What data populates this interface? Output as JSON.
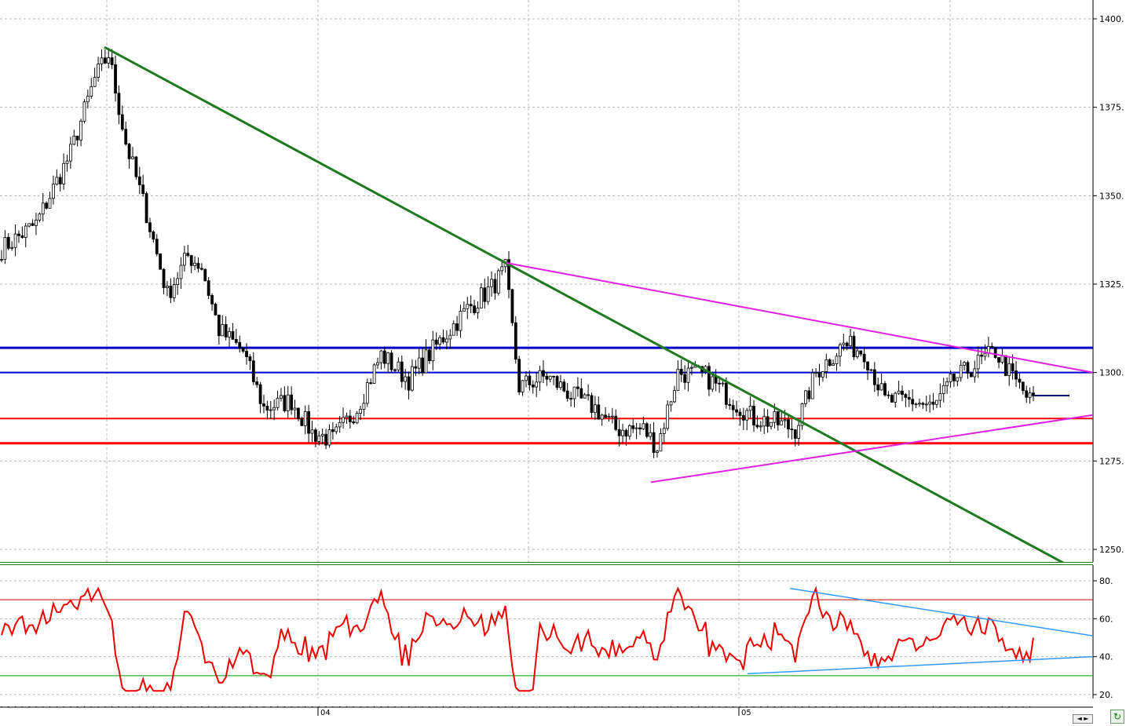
{
  "chart_data": [
    {
      "type": "candlestick",
      "title": "",
      "ylim": [
        1242,
        1410
      ],
      "y_ticks": [
        "1400.",
        "1375.",
        "1350.",
        "1325.",
        "1300.",
        "1275.",
        "1250."
      ],
      "y_tick_values": [
        1400,
        1375,
        1350,
        1325,
        1300,
        1275,
        1250
      ],
      "x_labels": [
        "04",
        "05"
      ],
      "grid": true,
      "last_price": 1293.5,
      "key_anchors": [
        {
          "label": "start",
          "close": 1335
        },
        {
          "label": "peak",
          "high": 1392
        },
        {
          "label": "2004 low",
          "low": 1277
        },
        {
          "label": "2004 high",
          "high": 1331
        },
        {
          "label": "2005 low",
          "low": 1269
        },
        {
          "label": "2005 high",
          "high": 1316
        }
      ],
      "horizontal_levels": [
        {
          "value": 1307,
          "color": "#0000cc"
        },
        {
          "value": 1300,
          "color": "#0000cc"
        },
        {
          "value": 1287,
          "color": "#ff0000"
        },
        {
          "value": 1280,
          "color": "#ff0000"
        }
      ],
      "trendlines": [
        {
          "color": "#1f7a1f",
          "from_value": 1392,
          "to_value": 1246
        },
        {
          "color": "#e020e0",
          "from_value": 1331,
          "to_value": 1300
        },
        {
          "color": "#e020e0",
          "from_value": 1269,
          "to_value": 1288
        }
      ]
    },
    {
      "type": "line",
      "title": "",
      "ylim": [
        20,
        85
      ],
      "y_ticks": [
        "80.",
        "60.",
        "40.",
        "20."
      ],
      "y_tick_values": [
        80,
        60,
        40,
        20
      ],
      "reference_levels": [
        {
          "value": 70,
          "color": "#cc0000"
        },
        {
          "value": 30,
          "color": "#009900"
        }
      ],
      "series": [
        {
          "color": "#ee0000",
          "last_value": 50,
          "min_value": 22,
          "max_value": 76
        }
      ],
      "trendlines": [
        {
          "color": "#3399ff",
          "from_value": 76,
          "to_value": 51
        },
        {
          "color": "#3399ff",
          "from_value": 31,
          "to_value": 40
        }
      ]
    }
  ],
  "colors": {
    "grid": "#b4b4b4",
    "candle": "#000000",
    "axis_text": "#000000",
    "separator": "#1a7a1a"
  },
  "controls": {
    "scroll_label": "◄ ►",
    "refresh_icon": "refresh-icon"
  }
}
